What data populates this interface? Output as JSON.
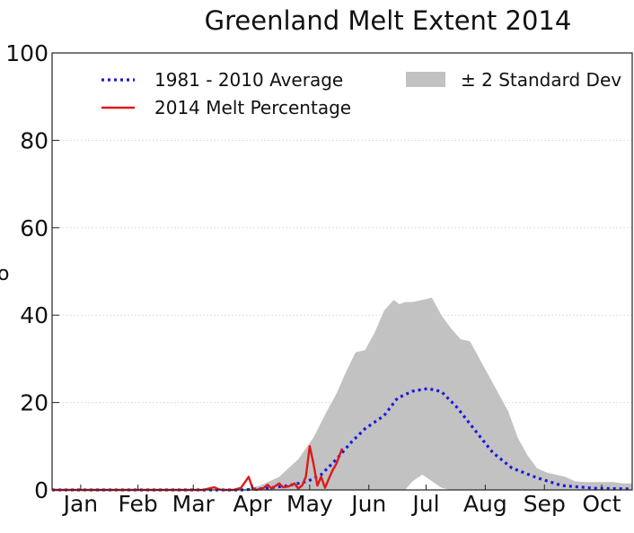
{
  "chart_data": {
    "type": "line",
    "title": "Greenland Melt Extent 2014",
    "xlabel": "",
    "ylabel": "",
    "ylim": [
      0,
      100
    ],
    "yticks": [
      0,
      20,
      40,
      60,
      80,
      100
    ],
    "xlim": [
      1,
      305
    ],
    "months": [
      {
        "label": "Jan",
        "day": 16
      },
      {
        "label": "Feb",
        "day": 46
      },
      {
        "label": "Mar",
        "day": 75
      },
      {
        "label": "Apr",
        "day": 106
      },
      {
        "label": "May",
        "day": 136
      },
      {
        "label": "Jun",
        "day": 167
      },
      {
        "label": "Jul",
        "day": 197
      },
      {
        "label": "Aug",
        "day": 228
      },
      {
        "label": "Sep",
        "day": 259
      },
      {
        "label": "Oct",
        "day": 289
      }
    ],
    "grid": true,
    "legend": "top",
    "colors": {
      "average": "#1a1adc",
      "melt_2014": "#dd1a1a",
      "std_band": "#c2c2c2"
    },
    "series": [
      {
        "name": "1981 - 2010 Average",
        "style": "dotted",
        "x": [
          1,
          100,
          112,
          125,
          135,
          142,
          150,
          158,
          165,
          175,
          182,
          190,
          198,
          205,
          213,
          222,
          232,
          242,
          255,
          268,
          285,
          305
        ],
        "y": [
          0,
          0,
          0.3,
          1,
          2,
          3.5,
          7,
          11,
          14,
          17,
          21,
          22.6,
          23.2,
          22.5,
          19,
          14,
          8.5,
          5,
          2.8,
          1,
          0.4,
          0.2
        ]
      },
      {
        "name": "2014 Melt Percentage",
        "style": "solid",
        "x": [
          1,
          80,
          86,
          88,
          90,
          96,
          100,
          104,
          106,
          108,
          112,
          114,
          116,
          120,
          122,
          125,
          128,
          130,
          132,
          134,
          136,
          138,
          140,
          142,
          144,
          146,
          148,
          150,
          153
        ],
        "y": [
          0,
          0,
          0.6,
          0.2,
          0,
          0,
          0.5,
          3,
          0.5,
          0,
          0.5,
          1.2,
          0.3,
          1.5,
          0.6,
          0.8,
          1.5,
          0.3,
          1,
          3,
          10,
          6,
          1,
          3,
          0.5,
          2.5,
          4.5,
          6,
          9.5
        ]
      },
      {
        "name": "± 2 Standard Dev",
        "type": "band",
        "x": [
          1,
          100,
          110,
          120,
          130,
          138,
          145,
          150,
          155,
          160,
          165,
          170,
          175,
          180,
          183,
          186,
          190,
          195,
          200,
          205,
          210,
          215,
          220,
          225,
          230,
          235,
          240,
          245,
          250,
          255,
          260,
          265,
          270,
          275,
          280,
          285,
          290,
          295,
          300,
          305
        ],
        "upper": [
          0,
          0,
          1,
          3,
          7,
          12,
          18,
          22,
          27,
          31.5,
          32,
          36,
          41,
          43.5,
          42.5,
          43,
          43,
          43.5,
          44,
          40,
          37,
          34.5,
          34,
          30,
          26,
          22,
          18,
          12,
          8,
          5,
          4,
          3.5,
          3,
          2,
          1.8,
          1.8,
          1.8,
          1.8,
          1.5,
          1.5
        ],
        "lower": [
          0,
          0,
          0,
          0,
          0,
          0,
          0,
          0,
          0,
          0,
          0,
          0,
          0,
          0,
          0,
          0,
          2,
          3.5,
          2,
          0.5,
          0,
          0,
          0,
          0,
          0,
          0,
          0,
          0,
          0,
          0,
          0,
          0,
          0,
          0,
          0,
          0,
          0,
          0,
          0,
          0
        ]
      }
    ]
  },
  "ylabel_fragment": "o"
}
